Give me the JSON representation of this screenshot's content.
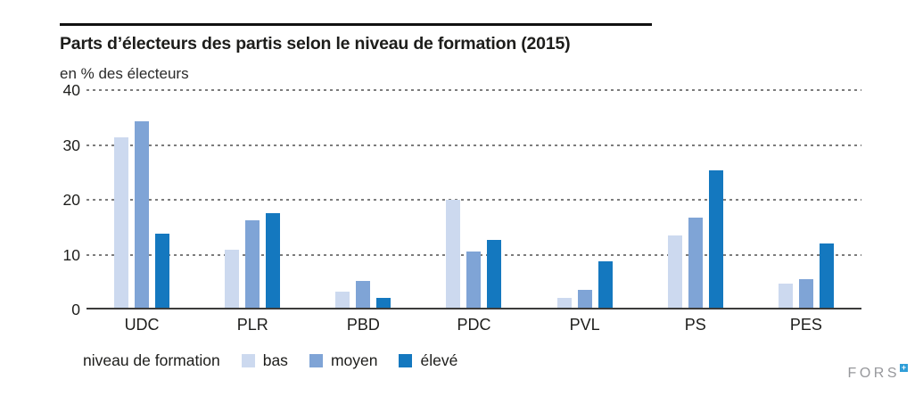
{
  "header": {
    "title": "Parts d’électeurs des partis selon le niveau de formation (2015)",
    "subtitle": "en % des électeurs"
  },
  "chart_data": {
    "type": "bar",
    "title": "Parts d’électeurs des partis selon le niveau de formation (2015)",
    "ylabel": "en % des électeurs",
    "xlabel": "",
    "categories": [
      "UDC",
      "PLR",
      "PBD",
      "PDC",
      "PVL",
      "PS",
      "PES"
    ],
    "series": [
      {
        "name": "bas",
        "color": "#ccd9ef",
        "values": [
          31.0,
          10.6,
          3.0,
          19.6,
          1.8,
          13.2,
          4.4
        ]
      },
      {
        "name": "moyen",
        "color": "#7fa4d6",
        "values": [
          34.0,
          16.0,
          4.8,
          10.3,
          3.3,
          16.4,
          5.2
        ]
      },
      {
        "name": "élevé",
        "color": "#1478bf",
        "values": [
          13.5,
          17.2,
          1.8,
          12.4,
          8.5,
          25.0,
          11.7
        ]
      }
    ],
    "ylim": [
      0,
      40
    ],
    "yticks": [
      0,
      10,
      20,
      30,
      40
    ],
    "grid": "horizontal-dotted",
    "legend_position": "bottom"
  },
  "legend": {
    "label": "niveau de formation",
    "items": [
      {
        "label": "bas"
      },
      {
        "label": "moyen"
      },
      {
        "label": "élevé"
      }
    ]
  },
  "footer": {
    "logo_text": "FORS",
    "logo_mark": "+"
  },
  "colors": {
    "bas": "#ccd9ef",
    "moyen": "#7fa4d6",
    "eleve": "#1478bf",
    "baseline": "#3c3c3b",
    "grid": "#7c7c7c",
    "fors_blue": "#2f9ed8"
  }
}
